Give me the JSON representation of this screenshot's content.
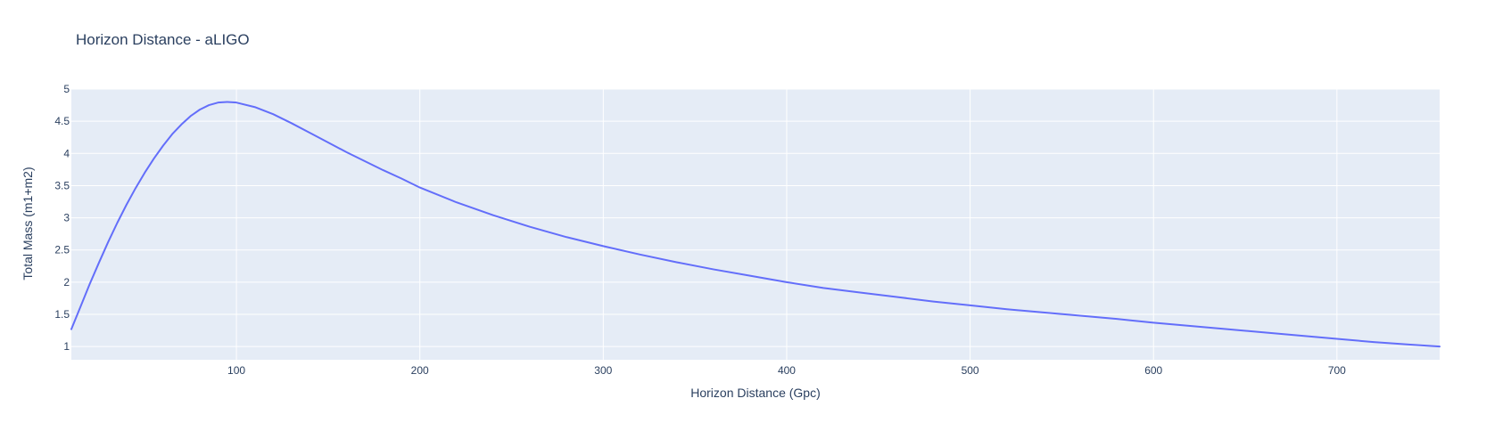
{
  "chart_data": {
    "type": "line",
    "title": "Horizon Distance - aLIGO",
    "xlabel": "Horizon Distance (Gpc)",
    "ylabel": "Total Mass (m1+m2)",
    "xlim": [
      10,
      756
    ],
    "ylim": [
      0.795,
      5
    ],
    "xticks": [
      100,
      200,
      300,
      400,
      500,
      600,
      700
    ],
    "xtick_labels": [
      "100",
      "200",
      "300",
      "400",
      "500",
      "600",
      "700"
    ],
    "yticks": [
      1,
      1.5,
      2,
      2.5,
      3,
      3.5,
      4,
      4.5,
      5
    ],
    "ytick_labels": [
      "1",
      "1.5",
      "2",
      "2.5",
      "3",
      "3.5",
      "4",
      "4.5",
      "5"
    ],
    "grid": true,
    "colors": {
      "line": "#636efa",
      "plot_bg": "#e5ecf6",
      "grid": "#ffffff",
      "text": "#2a3f5f"
    },
    "series": [
      {
        "name": "aLIGO",
        "x": [
          10,
          15,
          20,
          25,
          30,
          35,
          40,
          45,
          50,
          55,
          60,
          65,
          70,
          75,
          80,
          85,
          90,
          95,
          100,
          110,
          120,
          130,
          140,
          150,
          160,
          170,
          180,
          190,
          200,
          220,
          240,
          260,
          280,
          300,
          320,
          340,
          360,
          380,
          400,
          420,
          440,
          460,
          480,
          500,
          520,
          540,
          560,
          580,
          600,
          620,
          640,
          660,
          680,
          700,
          720,
          740,
          756
        ],
        "y": [
          1.27,
          1.62,
          1.97,
          2.3,
          2.62,
          2.92,
          3.2,
          3.46,
          3.7,
          3.92,
          4.12,
          4.3,
          4.45,
          4.58,
          4.68,
          4.75,
          4.79,
          4.8,
          4.79,
          4.72,
          4.61,
          4.47,
          4.32,
          4.17,
          4.02,
          3.88,
          3.74,
          3.61,
          3.47,
          3.24,
          3.04,
          2.86,
          2.7,
          2.56,
          2.43,
          2.31,
          2.2,
          2.1,
          2.0,
          1.91,
          1.84,
          1.77,
          1.7,
          1.64,
          1.58,
          1.53,
          1.48,
          1.43,
          1.37,
          1.32,
          1.27,
          1.22,
          1.17,
          1.12,
          1.07,
          1.03,
          1.0
        ]
      }
    ]
  }
}
